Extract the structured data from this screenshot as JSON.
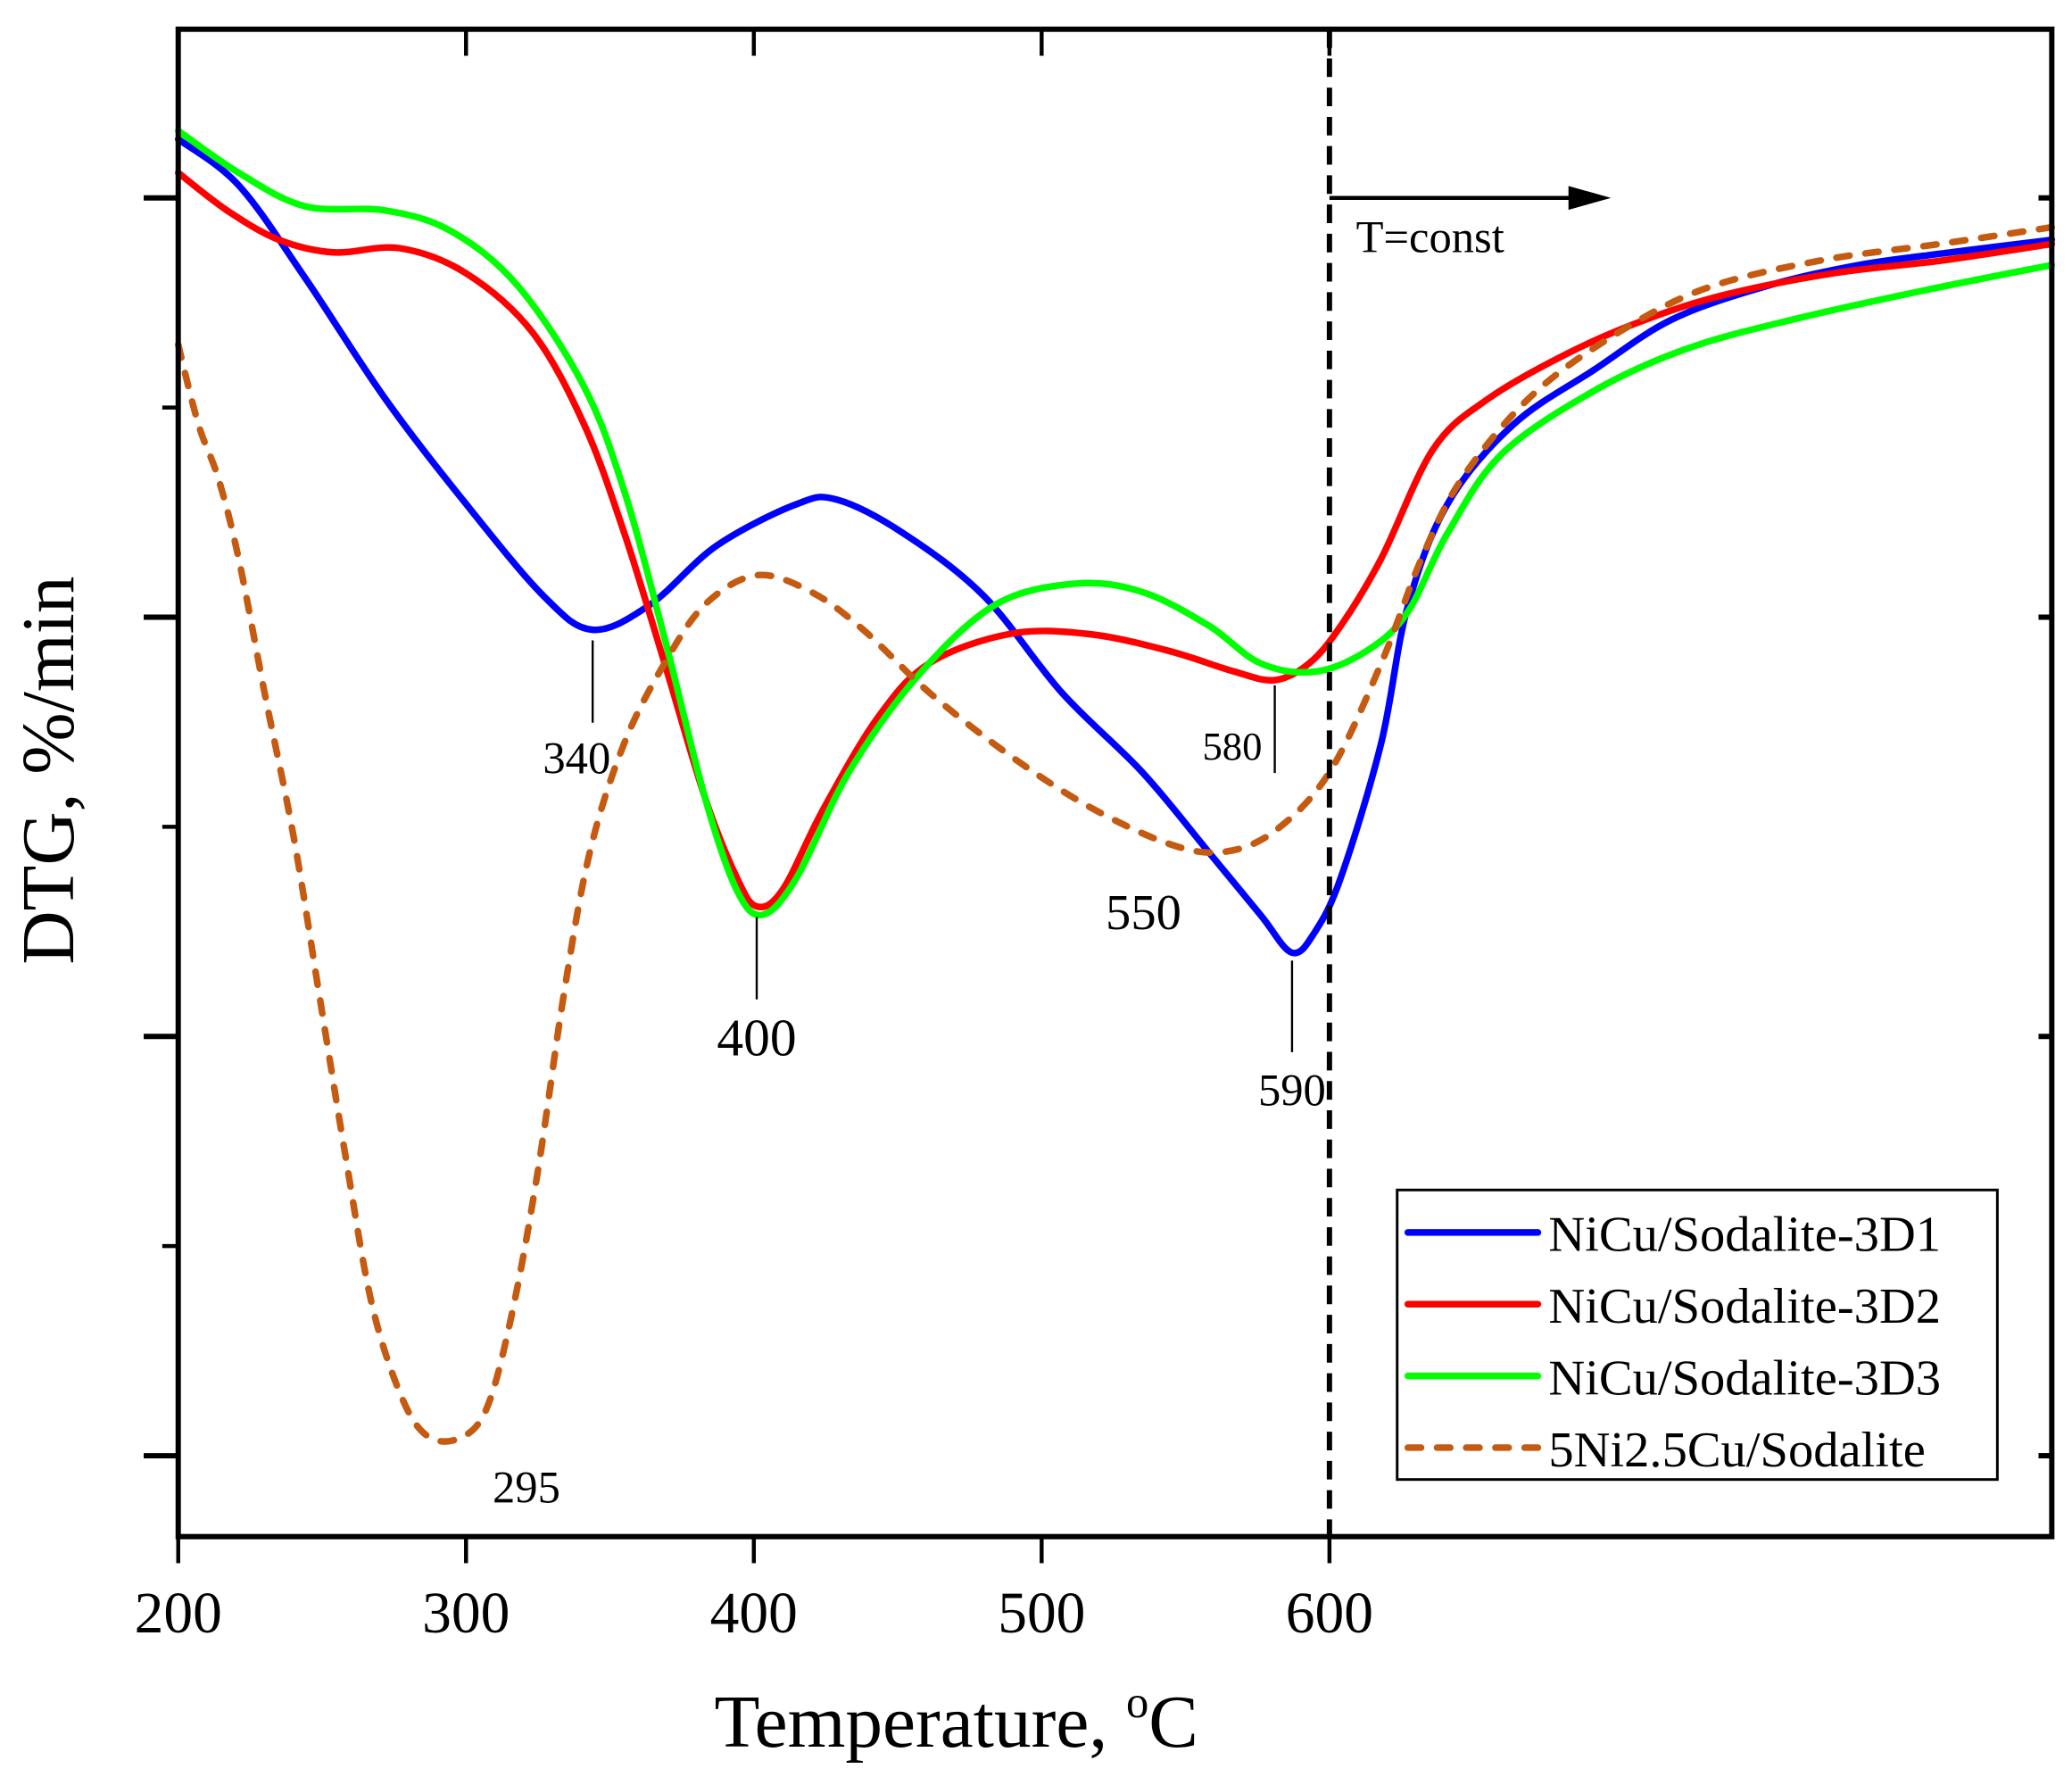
{
  "chart_data": {
    "type": "line",
    "title": "",
    "xlabel": "Temperature, ",
    "xlabel_superscript": "o",
    "xlabel_unit": "C",
    "ylabel": "DTG, %/min",
    "xlim": [
      200,
      851
    ],
    "ylim": [
      -3.19,
      0.4
    ],
    "x_ticks": [
      200,
      300,
      400,
      500,
      600
    ],
    "x_tick_labels": [
      "200",
      "300",
      "400",
      "500",
      "600"
    ],
    "x_minor_ticks": [
      250,
      350,
      450,
      550
    ],
    "y_ticks": [
      0,
      -1,
      -2,
      -3
    ],
    "y_tick_labels": [],
    "y_minor_ticks": [
      -0.5,
      -1.5,
      -2.5
    ],
    "grid": false,
    "legend_position": "bottom-right",
    "isothermal_marker": {
      "x": 600,
      "label": "T=const",
      "style": "dashed"
    },
    "series": [
      {
        "name": "NiCu/Sodalite-3D1",
        "color": "#0000ff",
        "dash": "solid",
        "x": [
          200,
          221,
          244,
          272,
          300,
          327,
          344,
          364,
          387,
          415,
          429,
          452,
          480,
          507,
          535,
          558,
          576,
          587,
          595,
          604,
          618,
          627,
          641,
          664,
          692,
          719,
          752,
          784,
          816,
          851
        ],
        "y": [
          0.14,
          0.03,
          -0.19,
          -0.48,
          -0.73,
          -0.95,
          -1.03,
          -0.97,
          -0.83,
          -0.73,
          -0.72,
          -0.8,
          -0.95,
          -1.18,
          -1.37,
          -1.56,
          -1.71,
          -1.8,
          -1.75,
          -1.62,
          -1.3,
          -0.98,
          -0.73,
          -0.54,
          -0.41,
          -0.29,
          -0.21,
          -0.16,
          -0.13,
          -0.1
        ]
      },
      {
        "name": "NiCu/Sodalite-3D2",
        "color": "#ff0000",
        "dash": "solid",
        "x": [
          200,
          217,
          235,
          254,
          277,
          300,
          323,
          341,
          355,
          369,
          383,
          394,
          401,
          410,
          424,
          443,
          461,
          489,
          516,
          544,
          567,
          581,
          593,
          604,
          618,
          636,
          655,
          683,
          710,
          738,
          775,
          812,
          851
        ],
        "y": [
          0.06,
          -0.03,
          -0.1,
          -0.13,
          -0.12,
          -0.18,
          -0.32,
          -0.54,
          -0.8,
          -1.11,
          -1.43,
          -1.62,
          -1.69,
          -1.65,
          -1.46,
          -1.24,
          -1.11,
          -1.04,
          -1.04,
          -1.08,
          -1.13,
          -1.15,
          -1.11,
          -1.02,
          -0.86,
          -0.6,
          -0.48,
          -0.37,
          -0.29,
          -0.23,
          -0.18,
          -0.15,
          -0.11
        ]
      },
      {
        "name": "NiCu/Sodalite-3D3",
        "color": "#00ff00",
        "dash": "solid",
        "x": [
          200,
          221,
          244,
          272,
          295,
          318,
          341,
          355,
          369,
          383,
          394,
          403,
          415,
          433,
          457,
          484,
          512,
          535,
          558,
          576,
          595,
          613,
          627,
          641,
          660,
          692,
          724,
          761,
          807,
          851
        ],
        "y": [
          0.16,
          0.06,
          -0.02,
          -0.03,
          -0.08,
          -0.21,
          -0.45,
          -0.7,
          -1.05,
          -1.43,
          -1.65,
          -1.71,
          -1.62,
          -1.37,
          -1.14,
          -0.97,
          -0.92,
          -0.94,
          -1.02,
          -1.11,
          -1.13,
          -1.08,
          -0.99,
          -0.8,
          -0.61,
          -0.46,
          -0.36,
          -0.29,
          -0.22,
          -0.16
        ]
      },
      {
        "name": "5Ni2.5Cu/Sodalite",
        "color": "#c55a11",
        "dash": "dashed",
        "x": [
          200,
          207,
          214,
          221,
          230,
          240,
          249,
          258,
          267,
          277,
          286,
          297,
          307,
          316,
          325,
          334,
          343,
          355,
          369,
          383,
          401,
          420,
          438,
          461,
          489,
          516,
          544,
          563,
          581,
          600,
          618,
          632,
          646,
          669,
          696,
          729,
          770,
          812,
          851
        ],
        "y": [
          -0.35,
          -0.54,
          -0.67,
          -0.86,
          -1.18,
          -1.52,
          -1.9,
          -2.28,
          -2.63,
          -2.85,
          -2.95,
          -2.96,
          -2.89,
          -2.66,
          -2.32,
          -1.9,
          -1.56,
          -1.3,
          -1.11,
          -0.97,
          -0.9,
          -0.94,
          -1.03,
          -1.18,
          -1.33,
          -1.45,
          -1.54,
          -1.56,
          -1.51,
          -1.37,
          -1.11,
          -0.86,
          -0.67,
          -0.48,
          -0.34,
          -0.22,
          -0.15,
          -0.11,
          -0.07
        ]
      }
    ],
    "annotations": [
      {
        "label": "340",
        "series": "NiCu/Sodalite-3D1",
        "x": 344,
        "y": -1.03,
        "pos": "below",
        "size": "small"
      },
      {
        "label": "400",
        "series": "NiCu/Sodalite-3D2",
        "x": 401,
        "y": -1.69,
        "pos": "below",
        "size": "large"
      },
      {
        "label": "580",
        "series": "NiCu/Sodalite-3D2",
        "x": 581,
        "y": -1.15,
        "pos": "below-left",
        "size": "small"
      },
      {
        "label": "590",
        "series": "NiCu/Sodalite-3D1",
        "x": 587,
        "y": -1.8,
        "pos": "below",
        "size": "small"
      },
      {
        "label": "550",
        "series": "5Ni2.5Cu/Sodalite",
        "x": 552,
        "y": -1.56,
        "pos": "below-left",
        "size": "large"
      },
      {
        "label": "295",
        "series": "5Ni2.5Cu/Sodalite",
        "x": 297,
        "y": -2.96,
        "pos": "below",
        "size": "small"
      }
    ]
  }
}
